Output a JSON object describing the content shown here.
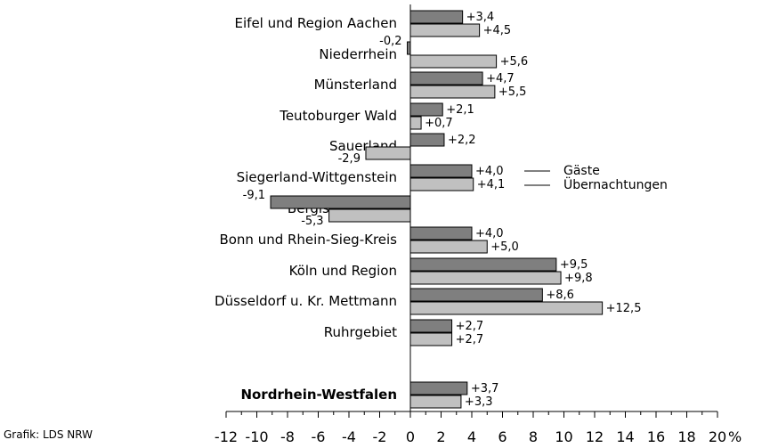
{
  "credit": "Grafik: LDS NRW",
  "chart_data": {
    "type": "bar",
    "orientation": "horizontal",
    "categories": [
      "Eifel und Region Aachen",
      "Niederrhein",
      "Münsterland",
      "Teutoburger Wald",
      "Sauerland",
      "Siegerland-Wittgenstein",
      "Bergisches Land",
      "Bonn und Rhein-Sieg-Kreis",
      "Köln und Region",
      "Düsseldorf u. Kr. Mettmann",
      "Ruhrgebiet",
      "Nordrhein-Westfalen"
    ],
    "bold_categories": [
      "Nordrhein-Westfalen"
    ],
    "series": [
      {
        "name": "Gäste",
        "color": "#7f7f7f",
        "values": [
          3.4,
          -0.2,
          4.7,
          2.1,
          2.2,
          4.0,
          -9.1,
          4.0,
          9.5,
          8.6,
          2.7,
          3.7
        ],
        "labels": [
          "+3,4",
          "-0,2",
          "+4,7",
          "+2,1",
          "+2,2",
          "+4,0",
          "-9,1",
          "+4,0",
          "+9,5",
          "+8,6",
          "+2,7",
          "+3,7"
        ]
      },
      {
        "name": "Übernachtungen",
        "color": "#c0c0c0",
        "values": [
          4.5,
          5.6,
          5.5,
          0.7,
          -2.9,
          4.1,
          -5.3,
          5.0,
          9.8,
          12.5,
          2.7,
          3.3
        ],
        "labels": [
          "+4,5",
          "+5,6",
          "+5,5",
          "+0,7",
          "-2,9",
          "+4,1",
          "-5,3",
          "+5,0",
          "+9,8",
          "+12,5",
          "+2,7",
          "+3,3"
        ]
      }
    ],
    "xlim": [
      -12,
      20
    ],
    "xticks": [
      -12,
      -10,
      -8,
      -6,
      -4,
      -2,
      0,
      2,
      4,
      6,
      8,
      10,
      12,
      14,
      16,
      18,
      20
    ],
    "xtick_labels": [
      "-12",
      "-10",
      "-8",
      "-6",
      "-4",
      "-2",
      "0",
      "2",
      "4",
      "6",
      "8",
      "10",
      "12",
      "14",
      "16",
      "18",
      "20"
    ],
    "x_unit": "%",
    "legend": {
      "placement": "beside Siegerland-Wittgenstein bars",
      "entries": [
        "Gäste",
        "Übernachtungen"
      ]
    },
    "grid": false
  }
}
